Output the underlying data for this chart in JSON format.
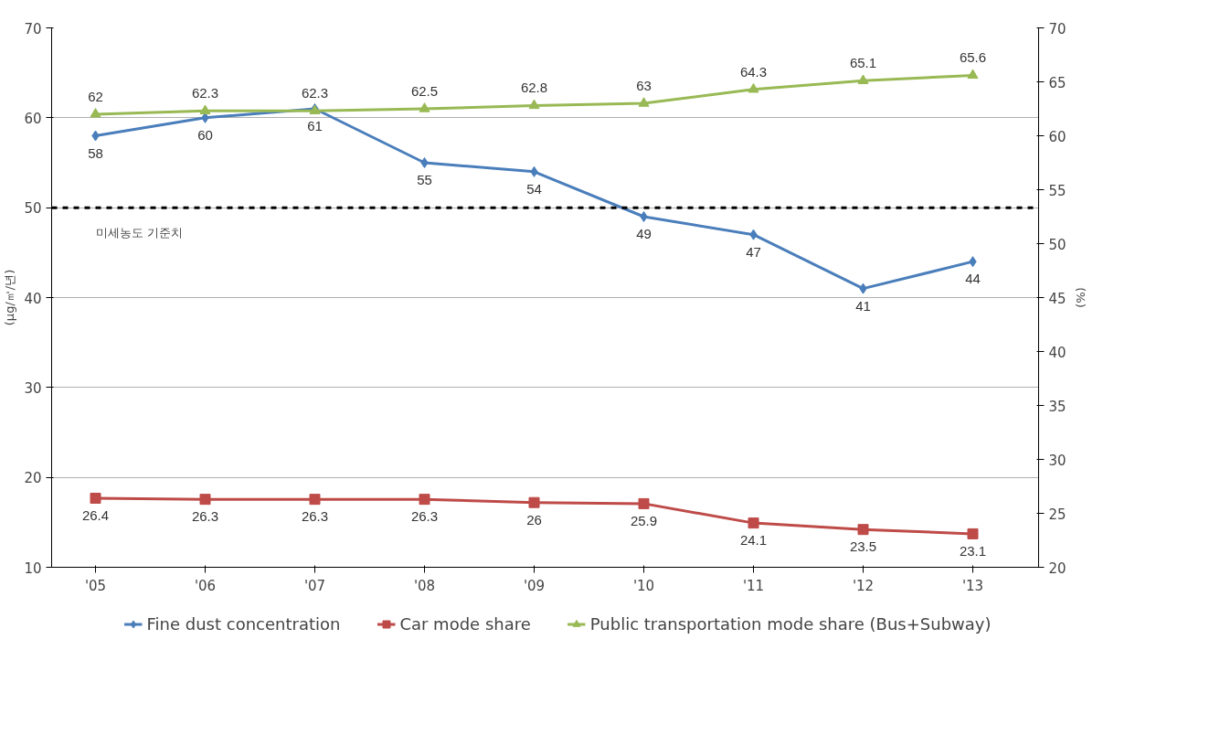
{
  "chart_data": {
    "type": "line",
    "categories": [
      "'05",
      "'06",
      "'07",
      "'08",
      "'09",
      "'10",
      "'11",
      "'12",
      "'13"
    ],
    "ylabel": "(μg/㎥/년)",
    "y2label": "(%)",
    "ylim": [
      10,
      70
    ],
    "yticks": [
      10,
      20,
      30,
      40,
      50,
      60,
      70
    ],
    "y2lim": [
      20,
      70
    ],
    "y2ticks": [
      20,
      25,
      30,
      35,
      40,
      45,
      50,
      55,
      60,
      65,
      70
    ],
    "grid": "y",
    "legend": "bottom",
    "data_labels": true,
    "line_style": "solid",
    "ref_lines": [
      {
        "axis": "y",
        "value": 50,
        "label": "미세농도 기준치",
        "color": "#000000",
        "line_style": "dashed"
      }
    ],
    "series": [
      {
        "name": "Fine dust concentration",
        "color": "#4a7ebb",
        "marker": "diamond",
        "values": [
          58,
          60,
          61,
          55,
          54,
          49,
          47,
          41,
          44
        ]
      },
      {
        "name": "Car mode share",
        "color": "#be4b48",
        "marker": "square",
        "axis": "y2",
        "values": [
          26.4,
          26.3,
          26.3,
          26.3,
          26,
          25.9,
          24.1,
          23.5,
          23.1
        ]
      },
      {
        "name": "Public transportation mode share (Bus+Subway)",
        "color": "#98b954",
        "marker": "triangle",
        "axis": "y2",
        "values": [
          62,
          62.3,
          62.3,
          62.5,
          62.8,
          63,
          64.3,
          65.1,
          65.6
        ]
      }
    ]
  }
}
